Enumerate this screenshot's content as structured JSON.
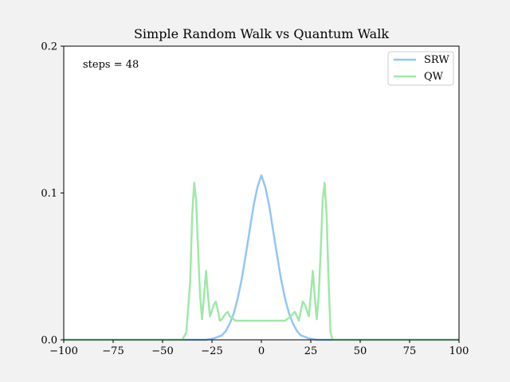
{
  "chart_data": {
    "type": "line",
    "title": "Simple Random Walk vs Quantum Walk",
    "xlabel": "",
    "ylabel": "",
    "xlim": [
      -100,
      100
    ],
    "ylim": [
      0,
      0.2
    ],
    "xticks": [
      -100,
      -75,
      -50,
      -25,
      0,
      25,
      50,
      75,
      100
    ],
    "xtick_labels": [
      "−100",
      "−75",
      "−50",
      "−25",
      "0",
      "25",
      "50",
      "75",
      "100"
    ],
    "yticks": [
      0,
      0.1,
      0.2
    ],
    "ytick_labels": [
      "0.0",
      "0.1",
      "0.2"
    ],
    "grid": false,
    "legend_position": "top-right",
    "annotation": "steps = 48",
    "series": [
      {
        "name": "SRW",
        "color": "#92c6f6",
        "x": [
          -100,
          -28,
          -24,
          -22,
          -20,
          -18,
          -16,
          -14,
          -12,
          -10,
          -8,
          -6,
          -4,
          -2,
          0,
          2,
          4,
          6,
          8,
          10,
          12,
          14,
          16,
          18,
          20,
          22,
          24,
          28,
          100
        ],
        "y": [
          0,
          0,
          0.001,
          0.002,
          0.003,
          0.006,
          0.011,
          0.018,
          0.028,
          0.041,
          0.057,
          0.074,
          0.091,
          0.104,
          0.112,
          0.104,
          0.091,
          0.074,
          0.057,
          0.041,
          0.028,
          0.018,
          0.011,
          0.006,
          0.003,
          0.002,
          0.001,
          0,
          0
        ]
      },
      {
        "name": "QW",
        "color": "#9fe8a8",
        "x": [
          -100,
          -40,
          -38,
          -36,
          -35,
          -34,
          -33,
          -32,
          -31,
          -30,
          -29,
          -28,
          -27,
          -26,
          -25,
          -24,
          -23,
          -22,
          -21,
          -20,
          -19,
          -18,
          -17,
          -16,
          -15,
          -14,
          -13,
          -12,
          -10,
          -8,
          -5,
          0,
          5,
          8,
          10,
          12,
          13,
          14,
          15,
          16,
          17,
          18,
          19,
          20,
          21,
          22,
          23,
          24,
          25,
          26,
          27,
          28,
          29,
          30,
          31,
          32,
          33,
          34,
          35,
          36,
          38,
          40,
          100
        ],
        "y": [
          0,
          0,
          0.005,
          0.04,
          0.085,
          0.107,
          0.095,
          0.06,
          0.03,
          0.014,
          0.03,
          0.047,
          0.03,
          0.016,
          0.02,
          0.024,
          0.026,
          0.02,
          0.013,
          0.014,
          0.016,
          0.018,
          0.019,
          0.016,
          0.015,
          0.014,
          0.013,
          0.013,
          0.013,
          0.013,
          0.013,
          0.013,
          0.013,
          0.013,
          0.013,
          0.013,
          0.014,
          0.015,
          0.016,
          0.018,
          0.019,
          0.016,
          0.013,
          0.02,
          0.026,
          0.024,
          0.02,
          0.016,
          0.03,
          0.047,
          0.03,
          0.014,
          0.03,
          0.06,
          0.095,
          0.107,
          0.085,
          0.04,
          0.005,
          0,
          0,
          0,
          0
        ]
      }
    ]
  }
}
